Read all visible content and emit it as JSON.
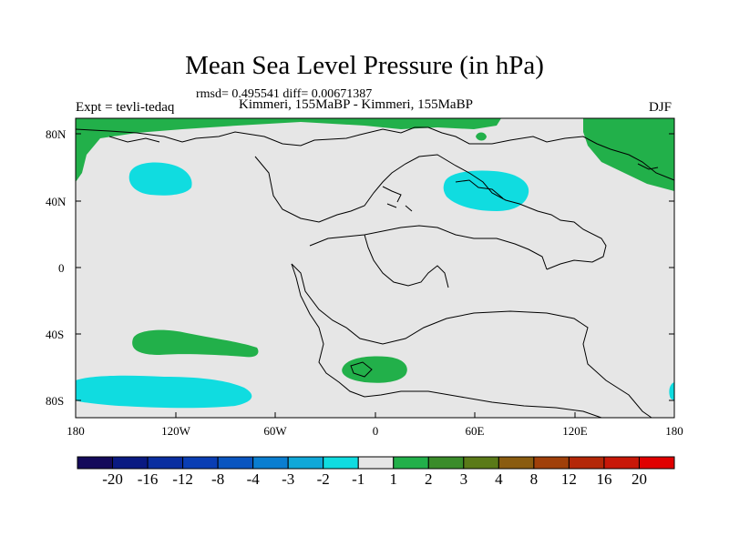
{
  "figure": {
    "title": "Mean Sea Level Pressure (in hPa)",
    "stats_line": "rmsd= 0.495541 diff= 0.00671387",
    "experiment": "Expt = tevli-tedaq",
    "subtitle": "Kimmeri, 155MaBP - Kimmeri, 155MaBP",
    "season": "DJF"
  },
  "axes": {
    "lat_labels": [
      "80N",
      "40N",
      "0",
      "40S",
      "80S"
    ],
    "lon_labels": [
      "180",
      "120W",
      "60W",
      "0",
      "60E",
      "120E",
      "180"
    ]
  },
  "colorbar": {
    "labels": [
      "-20",
      "-16",
      "-12",
      "-8",
      "-4",
      "-3",
      "-2",
      "-1",
      "1",
      "2",
      "3",
      "4",
      "8",
      "12",
      "16",
      "20"
    ],
    "colors": [
      "#140a5a",
      "#0a1a82",
      "#0a2ea0",
      "#0a3eb4",
      "#0a55c0",
      "#0a7ed0",
      "#10a8d8",
      "#10dce0",
      "#e6e6e6",
      "#22b04a",
      "#3a8c2a",
      "#5a7a18",
      "#8a5c10",
      "#a0400a",
      "#b42808",
      "#c81808",
      "#e00000"
    ]
  },
  "map": {
    "background_color": "#e6e6e6",
    "positive_color": "#22b04a",
    "negative_color": "#10dce0"
  }
}
